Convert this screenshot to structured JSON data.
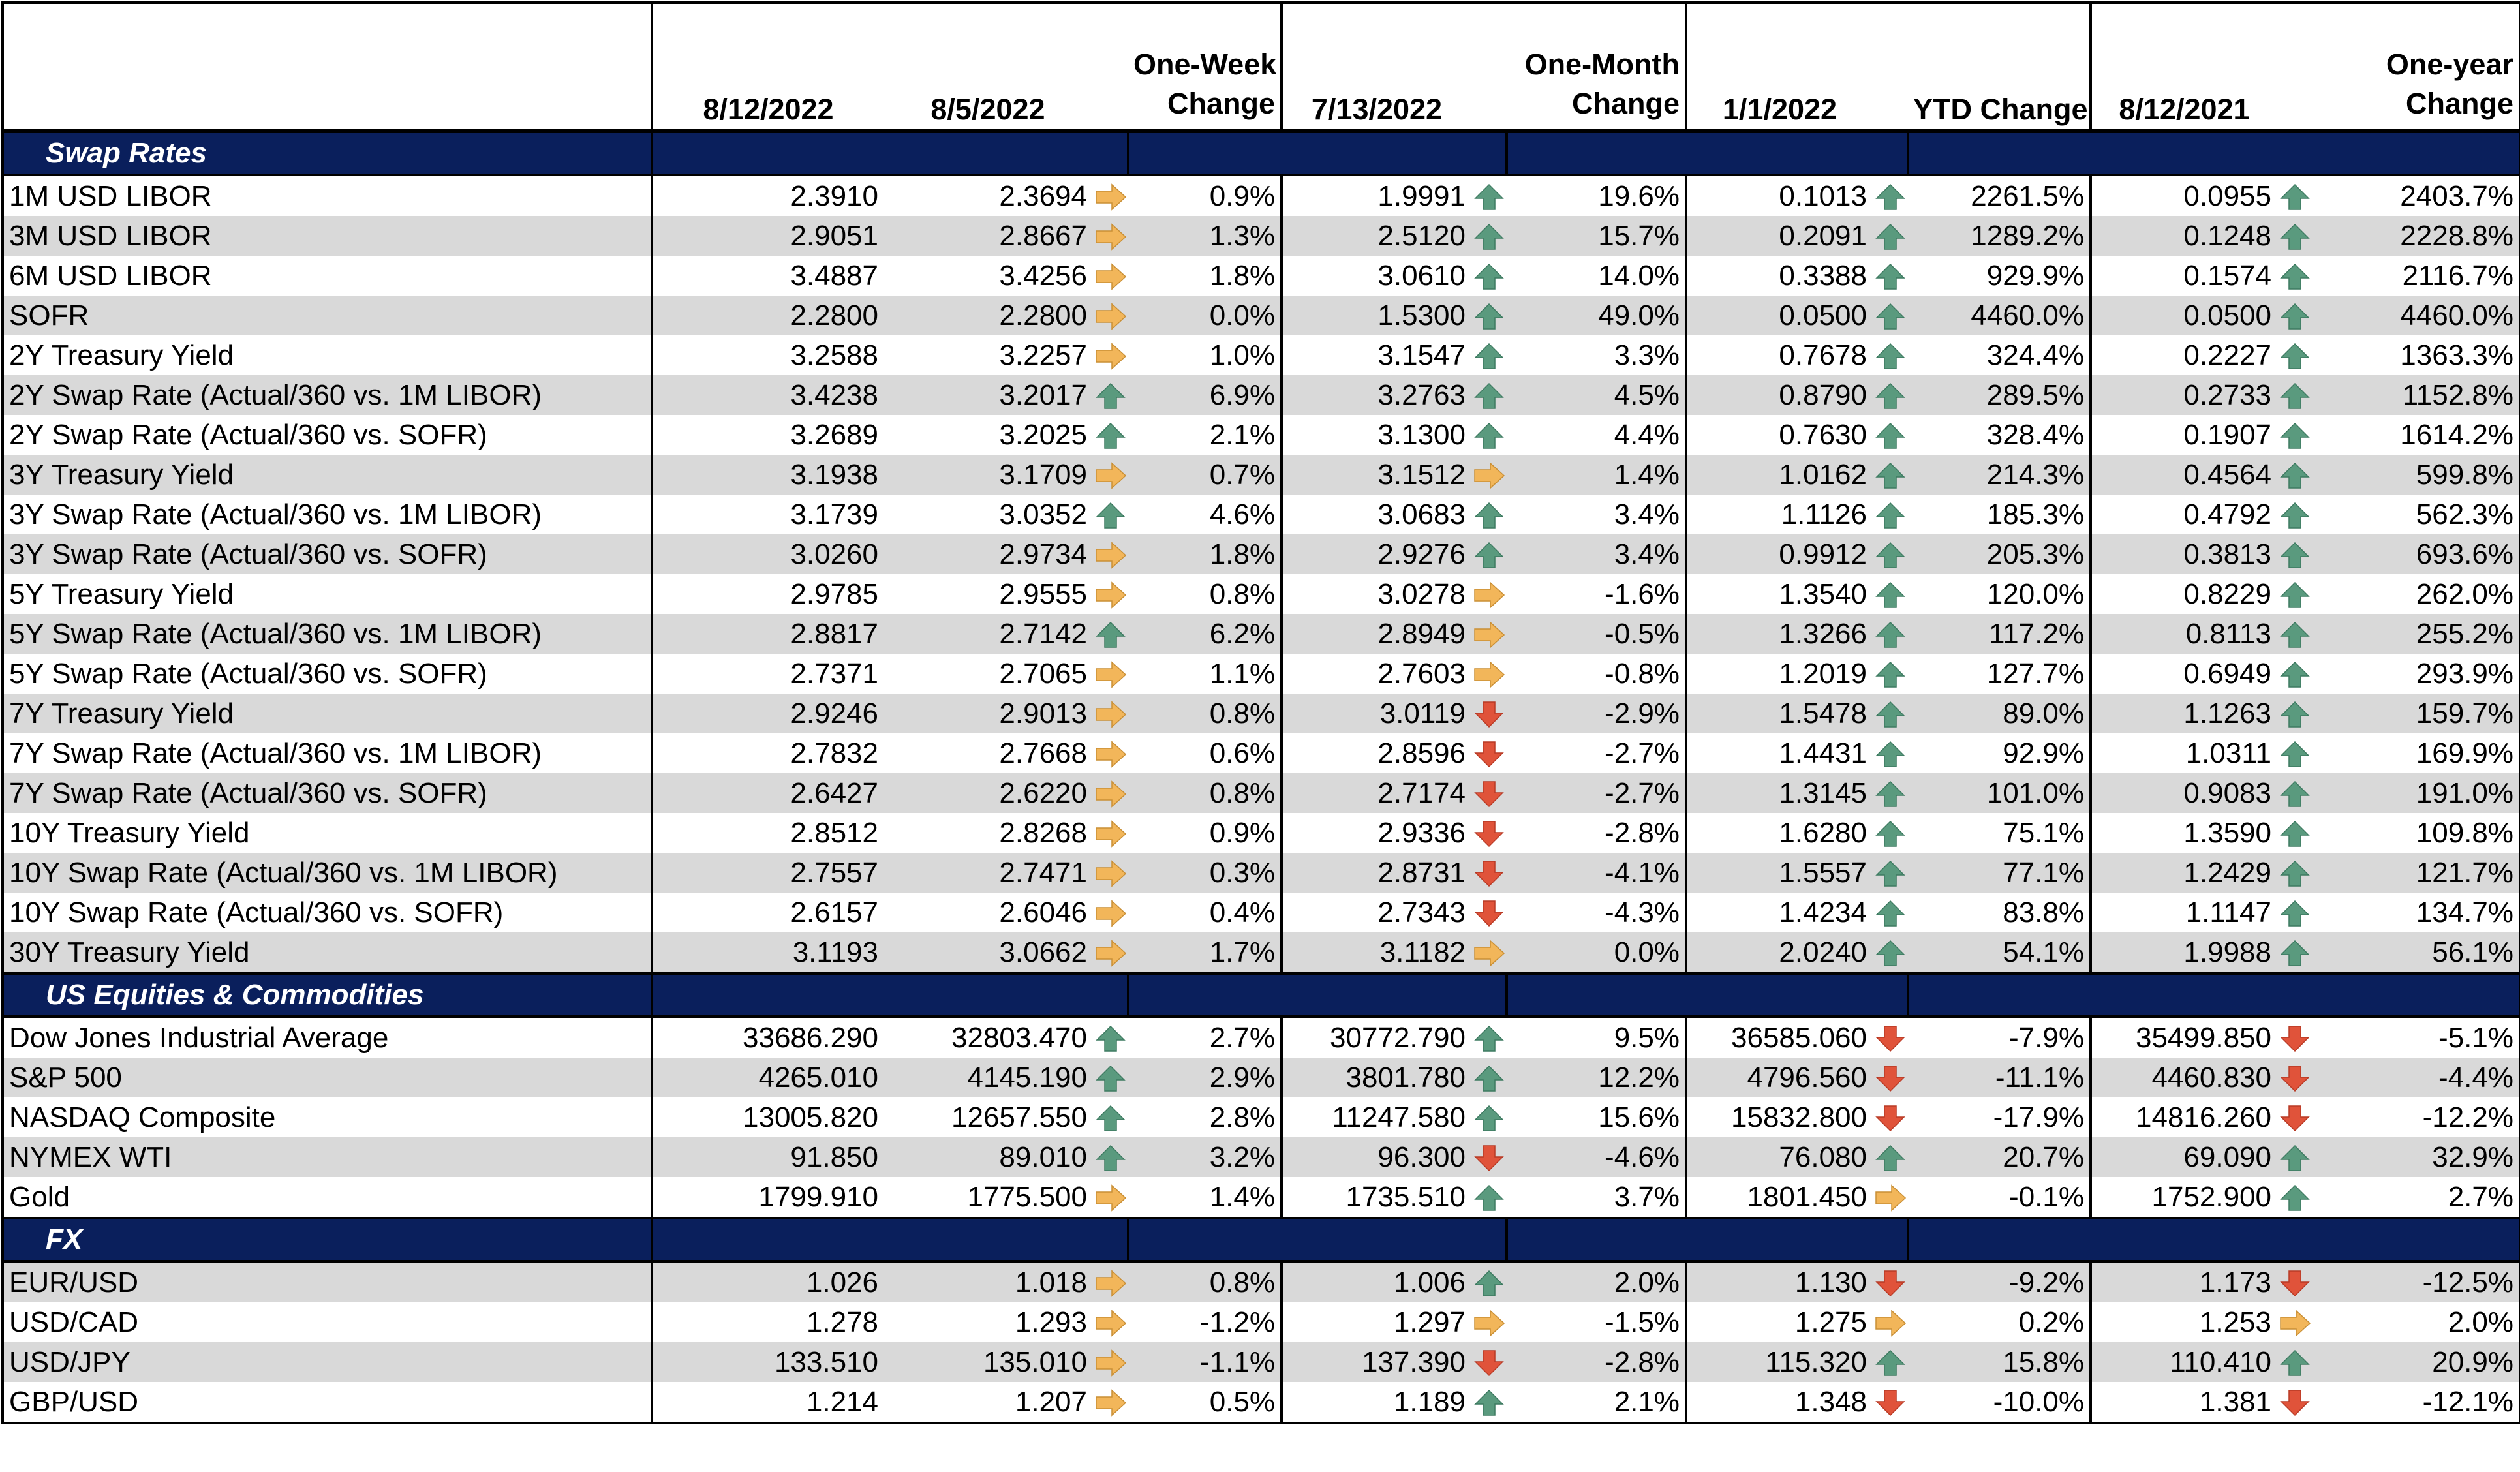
{
  "header": {
    "date_current": "8/12/2022",
    "date_week": "8/5/2022",
    "week_change": [
      "One-Week",
      "Change"
    ],
    "date_month": "7/13/2022",
    "month_change": [
      "One-Month",
      "Change"
    ],
    "date_ytd": "1/1/2022",
    "ytd_change": "YTD Change",
    "date_year": "8/12/2021",
    "year_change": [
      "One-year",
      "Change"
    ]
  },
  "colors": {
    "section_bg": "#0a1f5c",
    "row_shade": "#d9d9d9",
    "arrow_up": "#5a9a7e",
    "arrow_down": "#e0533a",
    "arrow_flat": "#f2b65a"
  },
  "sections": [
    {
      "title": "Swap Rates",
      "rows": [
        {
          "label": "1M USD LIBOR",
          "cur": "2.3910",
          "wk": "2.3694",
          "wk_dir": "flat",
          "wk_chg": "0.9%",
          "mo": "1.9991",
          "mo_dir": "up",
          "mo_chg": "19.6%",
          "ytd": "0.1013",
          "ytd_dir": "up",
          "ytd_chg": "2261.5%",
          "yr": "0.0955",
          "yr_dir": "up",
          "yr_chg": "2403.7%"
        },
        {
          "label": "3M USD LIBOR",
          "cur": "2.9051",
          "wk": "2.8667",
          "wk_dir": "flat",
          "wk_chg": "1.3%",
          "mo": "2.5120",
          "mo_dir": "up",
          "mo_chg": "15.7%",
          "ytd": "0.2091",
          "ytd_dir": "up",
          "ytd_chg": "1289.2%",
          "yr": "0.1248",
          "yr_dir": "up",
          "yr_chg": "2228.8%"
        },
        {
          "label": "6M USD LIBOR",
          "cur": "3.4887",
          "wk": "3.4256",
          "wk_dir": "flat",
          "wk_chg": "1.8%",
          "mo": "3.0610",
          "mo_dir": "up",
          "mo_chg": "14.0%",
          "ytd": "0.3388",
          "ytd_dir": "up",
          "ytd_chg": "929.9%",
          "yr": "0.1574",
          "yr_dir": "up",
          "yr_chg": "2116.7%"
        },
        {
          "label": "SOFR",
          "cur": "2.2800",
          "wk": "2.2800",
          "wk_dir": "flat",
          "wk_chg": "0.0%",
          "mo": "1.5300",
          "mo_dir": "up",
          "mo_chg": "49.0%",
          "ytd": "0.0500",
          "ytd_dir": "up",
          "ytd_chg": "4460.0%",
          "yr": "0.0500",
          "yr_dir": "up",
          "yr_chg": "4460.0%"
        },
        {
          "label": "2Y Treasury Yield",
          "cur": "3.2588",
          "wk": "3.2257",
          "wk_dir": "flat",
          "wk_chg": "1.0%",
          "mo": "3.1547",
          "mo_dir": "up",
          "mo_chg": "3.3%",
          "ytd": "0.7678",
          "ytd_dir": "up",
          "ytd_chg": "324.4%",
          "yr": "0.2227",
          "yr_dir": "up",
          "yr_chg": "1363.3%"
        },
        {
          "label": "2Y Swap Rate (Actual/360 vs. 1M LIBOR)",
          "cur": "3.4238",
          "wk": "3.2017",
          "wk_dir": "up",
          "wk_chg": "6.9%",
          "mo": "3.2763",
          "mo_dir": "up",
          "mo_chg": "4.5%",
          "ytd": "0.8790",
          "ytd_dir": "up",
          "ytd_chg": "289.5%",
          "yr": "0.2733",
          "yr_dir": "up",
          "yr_chg": "1152.8%"
        },
        {
          "label": "2Y Swap Rate (Actual/360 vs. SOFR)",
          "cur": "3.2689",
          "wk": "3.2025",
          "wk_dir": "up",
          "wk_chg": "2.1%",
          "mo": "3.1300",
          "mo_dir": "up",
          "mo_chg": "4.4%",
          "ytd": "0.7630",
          "ytd_dir": "up",
          "ytd_chg": "328.4%",
          "yr": "0.1907",
          "yr_dir": "up",
          "yr_chg": "1614.2%"
        },
        {
          "label": "3Y Treasury Yield",
          "cur": "3.1938",
          "wk": "3.1709",
          "wk_dir": "flat",
          "wk_chg": "0.7%",
          "mo": "3.1512",
          "mo_dir": "flat",
          "mo_chg": "1.4%",
          "ytd": "1.0162",
          "ytd_dir": "up",
          "ytd_chg": "214.3%",
          "yr": "0.4564",
          "yr_dir": "up",
          "yr_chg": "599.8%"
        },
        {
          "label": "3Y Swap Rate (Actual/360 vs. 1M LIBOR)",
          "cur": "3.1739",
          "wk": "3.0352",
          "wk_dir": "up",
          "wk_chg": "4.6%",
          "mo": "3.0683",
          "mo_dir": "up",
          "mo_chg": "3.4%",
          "ytd": "1.1126",
          "ytd_dir": "up",
          "ytd_chg": "185.3%",
          "yr": "0.4792",
          "yr_dir": "up",
          "yr_chg": "562.3%"
        },
        {
          "label": "3Y Swap Rate (Actual/360 vs. SOFR)",
          "cur": "3.0260",
          "wk": "2.9734",
          "wk_dir": "flat",
          "wk_chg": "1.8%",
          "mo": "2.9276",
          "mo_dir": "up",
          "mo_chg": "3.4%",
          "ytd": "0.9912",
          "ytd_dir": "up",
          "ytd_chg": "205.3%",
          "yr": "0.3813",
          "yr_dir": "up",
          "yr_chg": "693.6%"
        },
        {
          "label": "5Y Treasury Yield",
          "cur": "2.9785",
          "wk": "2.9555",
          "wk_dir": "flat",
          "wk_chg": "0.8%",
          "mo": "3.0278",
          "mo_dir": "flat",
          "mo_chg": "-1.6%",
          "ytd": "1.3540",
          "ytd_dir": "up",
          "ytd_chg": "120.0%",
          "yr": "0.8229",
          "yr_dir": "up",
          "yr_chg": "262.0%"
        },
        {
          "label": "5Y Swap Rate (Actual/360 vs. 1M LIBOR)",
          "cur": "2.8817",
          "wk": "2.7142",
          "wk_dir": "up",
          "wk_chg": "6.2%",
          "mo": "2.8949",
          "mo_dir": "flat",
          "mo_chg": "-0.5%",
          "ytd": "1.3266",
          "ytd_dir": "up",
          "ytd_chg": "117.2%",
          "yr": "0.8113",
          "yr_dir": "up",
          "yr_chg": "255.2%"
        },
        {
          "label": "5Y Swap Rate (Actual/360 vs. SOFR)",
          "cur": "2.7371",
          "wk": "2.7065",
          "wk_dir": "flat",
          "wk_chg": "1.1%",
          "mo": "2.7603",
          "mo_dir": "flat",
          "mo_chg": "-0.8%",
          "ytd": "1.2019",
          "ytd_dir": "up",
          "ytd_chg": "127.7%",
          "yr": "0.6949",
          "yr_dir": "up",
          "yr_chg": "293.9%"
        },
        {
          "label": "7Y Treasury Yield",
          "cur": "2.9246",
          "wk": "2.9013",
          "wk_dir": "flat",
          "wk_chg": "0.8%",
          "mo": "3.0119",
          "mo_dir": "down",
          "mo_chg": "-2.9%",
          "ytd": "1.5478",
          "ytd_dir": "up",
          "ytd_chg": "89.0%",
          "yr": "1.1263",
          "yr_dir": "up",
          "yr_chg": "159.7%"
        },
        {
          "label": "7Y Swap Rate (Actual/360 vs. 1M LIBOR)",
          "cur": "2.7832",
          "wk": "2.7668",
          "wk_dir": "flat",
          "wk_chg": "0.6%",
          "mo": "2.8596",
          "mo_dir": "down",
          "mo_chg": "-2.7%",
          "ytd": "1.4431",
          "ytd_dir": "up",
          "ytd_chg": "92.9%",
          "yr": "1.0311",
          "yr_dir": "up",
          "yr_chg": "169.9%"
        },
        {
          "label": "7Y Swap Rate (Actual/360 vs. SOFR)",
          "cur": "2.6427",
          "wk": "2.6220",
          "wk_dir": "flat",
          "wk_chg": "0.8%",
          "mo": "2.7174",
          "mo_dir": "down",
          "mo_chg": "-2.7%",
          "ytd": "1.3145",
          "ytd_dir": "up",
          "ytd_chg": "101.0%",
          "yr": "0.9083",
          "yr_dir": "up",
          "yr_chg": "191.0%"
        },
        {
          "label": "10Y Treasury Yield",
          "cur": "2.8512",
          "wk": "2.8268",
          "wk_dir": "flat",
          "wk_chg": "0.9%",
          "mo": "2.9336",
          "mo_dir": "down",
          "mo_chg": "-2.8%",
          "ytd": "1.6280",
          "ytd_dir": "up",
          "ytd_chg": "75.1%",
          "yr": "1.3590",
          "yr_dir": "up",
          "yr_chg": "109.8%"
        },
        {
          "label": "10Y Swap Rate (Actual/360 vs. 1M LIBOR)",
          "cur": "2.7557",
          "wk": "2.7471",
          "wk_dir": "flat",
          "wk_chg": "0.3%",
          "mo": "2.8731",
          "mo_dir": "down",
          "mo_chg": "-4.1%",
          "ytd": "1.5557",
          "ytd_dir": "up",
          "ytd_chg": "77.1%",
          "yr": "1.2429",
          "yr_dir": "up",
          "yr_chg": "121.7%"
        },
        {
          "label": "10Y Swap Rate (Actual/360 vs. SOFR)",
          "cur": "2.6157",
          "wk": "2.6046",
          "wk_dir": "flat",
          "wk_chg": "0.4%",
          "mo": "2.7343",
          "mo_dir": "down",
          "mo_chg": "-4.3%",
          "ytd": "1.4234",
          "ytd_dir": "up",
          "ytd_chg": "83.8%",
          "yr": "1.1147",
          "yr_dir": "up",
          "yr_chg": "134.7%"
        },
        {
          "label": "30Y Treasury Yield",
          "cur": "3.1193",
          "wk": "3.0662",
          "wk_dir": "flat",
          "wk_chg": "1.7%",
          "mo": "3.1182",
          "mo_dir": "flat",
          "mo_chg": "0.0%",
          "ytd": "2.0240",
          "ytd_dir": "up",
          "ytd_chg": "54.1%",
          "yr": "1.9988",
          "yr_dir": "up",
          "yr_chg": "56.1%"
        }
      ]
    },
    {
      "title": "US Equities & Commodities",
      "rows": [
        {
          "label": "Dow Jones Industrial Average",
          "cur": "33686.290",
          "wk": "32803.470",
          "wk_dir": "up",
          "wk_chg": "2.7%",
          "mo": "30772.790",
          "mo_dir": "up",
          "mo_chg": "9.5%",
          "ytd": "36585.060",
          "ytd_dir": "down",
          "ytd_chg": "-7.9%",
          "yr": "35499.850",
          "yr_dir": "down",
          "yr_chg": "-5.1%"
        },
        {
          "label": "S&P 500",
          "cur": "4265.010",
          "wk": "4145.190",
          "wk_dir": "up",
          "wk_chg": "2.9%",
          "mo": "3801.780",
          "mo_dir": "up",
          "mo_chg": "12.2%",
          "ytd": "4796.560",
          "ytd_dir": "down",
          "ytd_chg": "-11.1%",
          "yr": "4460.830",
          "yr_dir": "down",
          "yr_chg": "-4.4%"
        },
        {
          "label": "NASDAQ Composite",
          "cur": "13005.820",
          "wk": "12657.550",
          "wk_dir": "up",
          "wk_chg": "2.8%",
          "mo": "11247.580",
          "mo_dir": "up",
          "mo_chg": "15.6%",
          "ytd": "15832.800",
          "ytd_dir": "down",
          "ytd_chg": "-17.9%",
          "yr": "14816.260",
          "yr_dir": "down",
          "yr_chg": "-12.2%"
        },
        {
          "label": "NYMEX WTI",
          "cur": "91.850",
          "wk": "89.010",
          "wk_dir": "up",
          "wk_chg": "3.2%",
          "mo": "96.300",
          "mo_dir": "down",
          "mo_chg": "-4.6%",
          "ytd": "76.080",
          "ytd_dir": "up",
          "ytd_chg": "20.7%",
          "yr": "69.090",
          "yr_dir": "up",
          "yr_chg": "32.9%"
        },
        {
          "label": "Gold",
          "cur": "1799.910",
          "wk": "1775.500",
          "wk_dir": "flat",
          "wk_chg": "1.4%",
          "mo": "1735.510",
          "mo_dir": "up",
          "mo_chg": "3.7%",
          "ytd": "1801.450",
          "ytd_dir": "flat",
          "ytd_chg": "-0.1%",
          "yr": "1752.900",
          "yr_dir": "up",
          "yr_chg": "2.7%"
        }
      ]
    },
    {
      "title": "FX",
      "rows": [
        {
          "label": "EUR/USD",
          "cur": "1.026",
          "wk": "1.018",
          "wk_dir": "flat",
          "wk_chg": "0.8%",
          "mo": "1.006",
          "mo_dir": "up",
          "mo_chg": "2.0%",
          "ytd": "1.130",
          "ytd_dir": "down",
          "ytd_chg": "-9.2%",
          "yr": "1.173",
          "yr_dir": "down",
          "yr_chg": "-12.5%"
        },
        {
          "label": "USD/CAD",
          "cur": "1.278",
          "wk": "1.293",
          "wk_dir": "flat",
          "wk_chg": "-1.2%",
          "mo": "1.297",
          "mo_dir": "flat",
          "mo_chg": "-1.5%",
          "ytd": "1.275",
          "ytd_dir": "flat",
          "ytd_chg": "0.2%",
          "yr": "1.253",
          "yr_dir": "flat",
          "yr_chg": "2.0%"
        },
        {
          "label": "USD/JPY",
          "cur": "133.510",
          "wk": "135.010",
          "wk_dir": "flat",
          "wk_chg": "-1.1%",
          "mo": "137.390",
          "mo_dir": "down",
          "mo_chg": "-2.8%",
          "ytd": "115.320",
          "ytd_dir": "up",
          "ytd_chg": "15.8%",
          "yr": "110.410",
          "yr_dir": "up",
          "yr_chg": "20.9%"
        },
        {
          "label": "GBP/USD",
          "cur": "1.214",
          "wk": "1.207",
          "wk_dir": "flat",
          "wk_chg": "0.5%",
          "mo": "1.189",
          "mo_dir": "up",
          "mo_chg": "2.1%",
          "ytd": "1.348",
          "ytd_dir": "down",
          "ytd_chg": "-10.0%",
          "yr": "1.381",
          "yr_dir": "down",
          "yr_chg": "-12.1%"
        }
      ]
    }
  ]
}
